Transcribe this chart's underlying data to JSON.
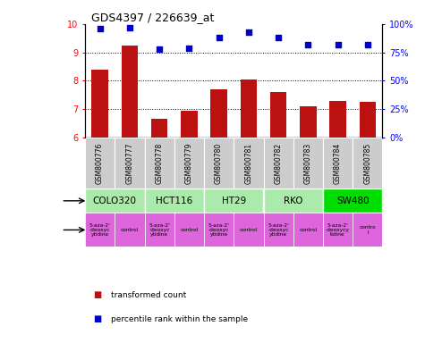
{
  "title": "GDS4397 / 226639_at",
  "samples": [
    "GSM800776",
    "GSM800777",
    "GSM800778",
    "GSM800779",
    "GSM800780",
    "GSM800781",
    "GSM800782",
    "GSM800783",
    "GSM800784",
    "GSM800785"
  ],
  "transformed_counts": [
    8.4,
    9.25,
    6.65,
    6.95,
    7.7,
    8.05,
    7.6,
    7.1,
    7.3,
    7.25
  ],
  "percentile_ranks": [
    96,
    97,
    78,
    79,
    88,
    93,
    88,
    82,
    82,
    82
  ],
  "ylim_left": [
    6,
    10
  ],
  "ylim_right": [
    0,
    100
  ],
  "yticks_left": [
    6,
    7,
    8,
    9,
    10
  ],
  "yticks_right": [
    0,
    25,
    50,
    75,
    100
  ],
  "yticklabels_right": [
    "0%",
    "25%",
    "50%",
    "75%",
    "100%"
  ],
  "bar_color": "#bb1111",
  "scatter_color": "#0000cc",
  "cell_lines": [
    {
      "name": "COLO320",
      "start": 0,
      "end": 2,
      "color": "#aaeaaa"
    },
    {
      "name": "HCT116",
      "start": 2,
      "end": 4,
      "color": "#aaeaaa"
    },
    {
      "name": "HT29",
      "start": 4,
      "end": 6,
      "color": "#aaeaaa"
    },
    {
      "name": "RKO",
      "start": 6,
      "end": 8,
      "color": "#aaeaaa"
    },
    {
      "name": "SW480",
      "start": 8,
      "end": 10,
      "color": "#00dd00"
    }
  ],
  "agents": [
    {
      "name": "5-aza-2'\n-deoxyc\nytidine",
      "start": 0,
      "end": 1,
      "color": "#dd66dd"
    },
    {
      "name": "control",
      "start": 1,
      "end": 2,
      "color": "#dd66dd"
    },
    {
      "name": "5-aza-2'\n-deoxyc\nytidine",
      "start": 2,
      "end": 3,
      "color": "#dd66dd"
    },
    {
      "name": "control",
      "start": 3,
      "end": 4,
      "color": "#dd66dd"
    },
    {
      "name": "5-aza-2'\n-deoxyc\nytidine",
      "start": 4,
      "end": 5,
      "color": "#dd66dd"
    },
    {
      "name": "control",
      "start": 5,
      "end": 6,
      "color": "#dd66dd"
    },
    {
      "name": "5-aza-2'\n-deoxyc\nytidine",
      "start": 6,
      "end": 7,
      "color": "#dd66dd"
    },
    {
      "name": "control",
      "start": 7,
      "end": 8,
      "color": "#dd66dd"
    },
    {
      "name": "5-aza-2'\n-deoxycy\ntidine",
      "start": 8,
      "end": 9,
      "color": "#dd66dd"
    },
    {
      "name": "contro\nl",
      "start": 9,
      "end": 10,
      "color": "#dd66dd"
    }
  ],
  "dotted_yticks": [
    7,
    8,
    9
  ],
  "tick_label_fontsize": 7,
  "bar_width": 0.55,
  "sample_bg_color": "#cccccc",
  "legend_red_label": "transformed count",
  "legend_blue_label": "percentile rank within the sample"
}
